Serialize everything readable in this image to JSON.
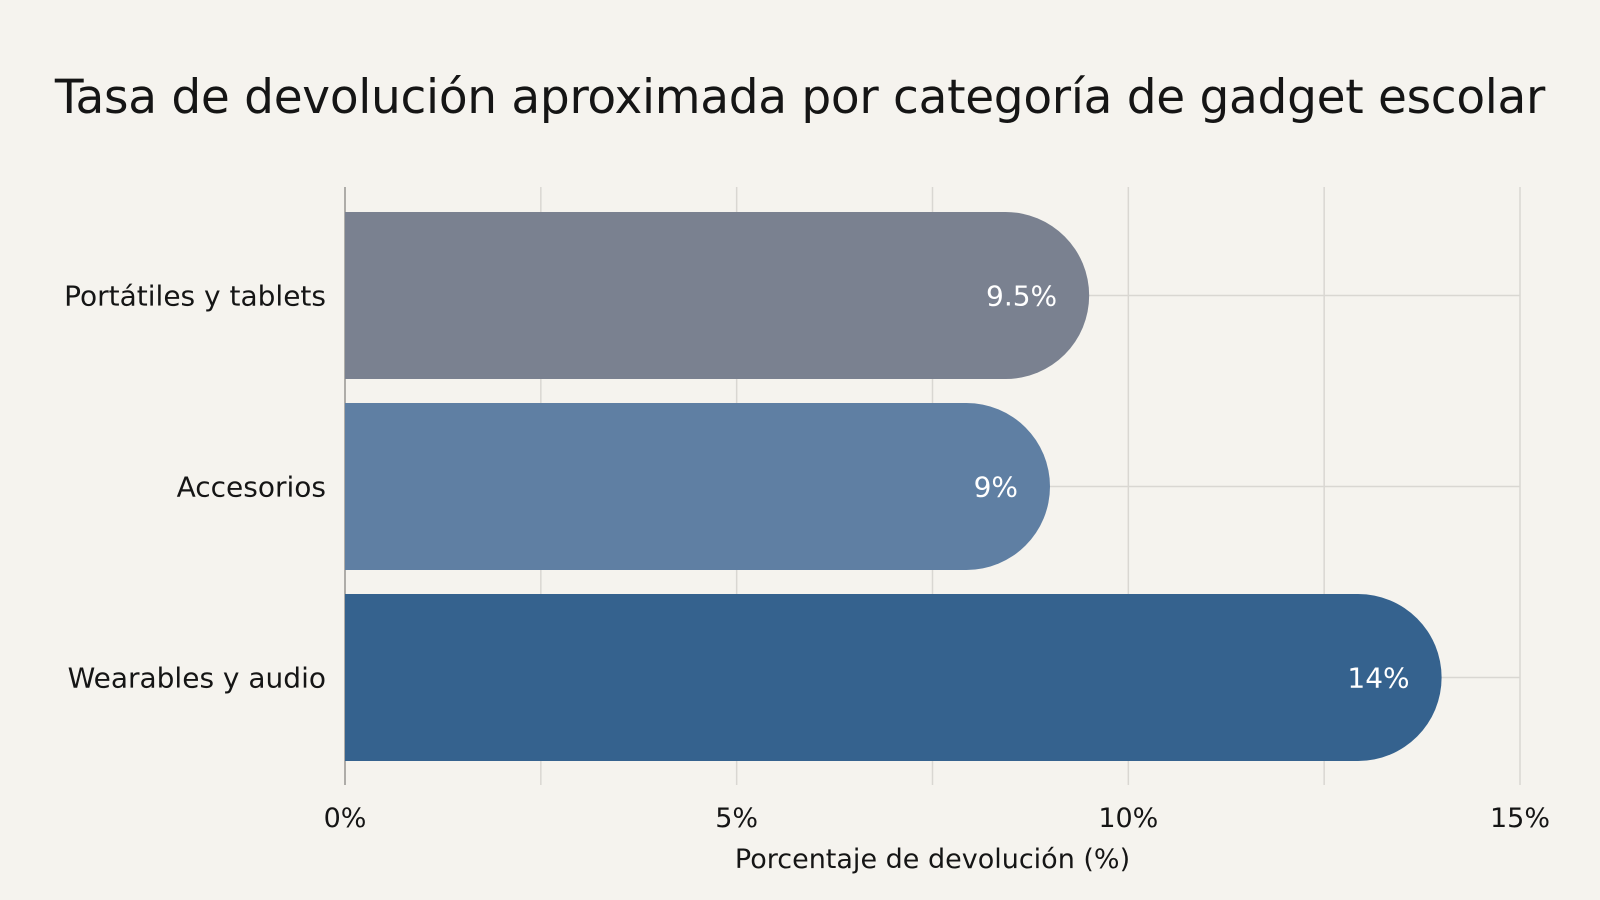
{
  "colors": {
    "background": "#f5f3ee",
    "grid": "#d9d7d2",
    "series": [
      "#7a8190",
      "#5f7fa3",
      "#35628e"
    ]
  },
  "chart_data": {
    "type": "bar",
    "orientation": "horizontal",
    "title": "Tasa de devolución aproximada por categoría de gadget escolar",
    "xlabel": "Porcentaje de devolución (%)",
    "ylabel": "",
    "categories": [
      "Portátiles y tablets",
      "Accesorios",
      "Wearables y audio"
    ],
    "values": [
      9.5,
      9,
      14
    ],
    "value_labels": [
      "9.5%",
      "9%",
      "14%"
    ],
    "xlim": [
      0,
      15
    ],
    "xticks": [
      0,
      5,
      10,
      15
    ],
    "xtick_labels": [
      "0%",
      "5%",
      "10%",
      "15%"
    ],
    "minor_grid_step": 2.5,
    "grid": true,
    "legend": "none"
  }
}
